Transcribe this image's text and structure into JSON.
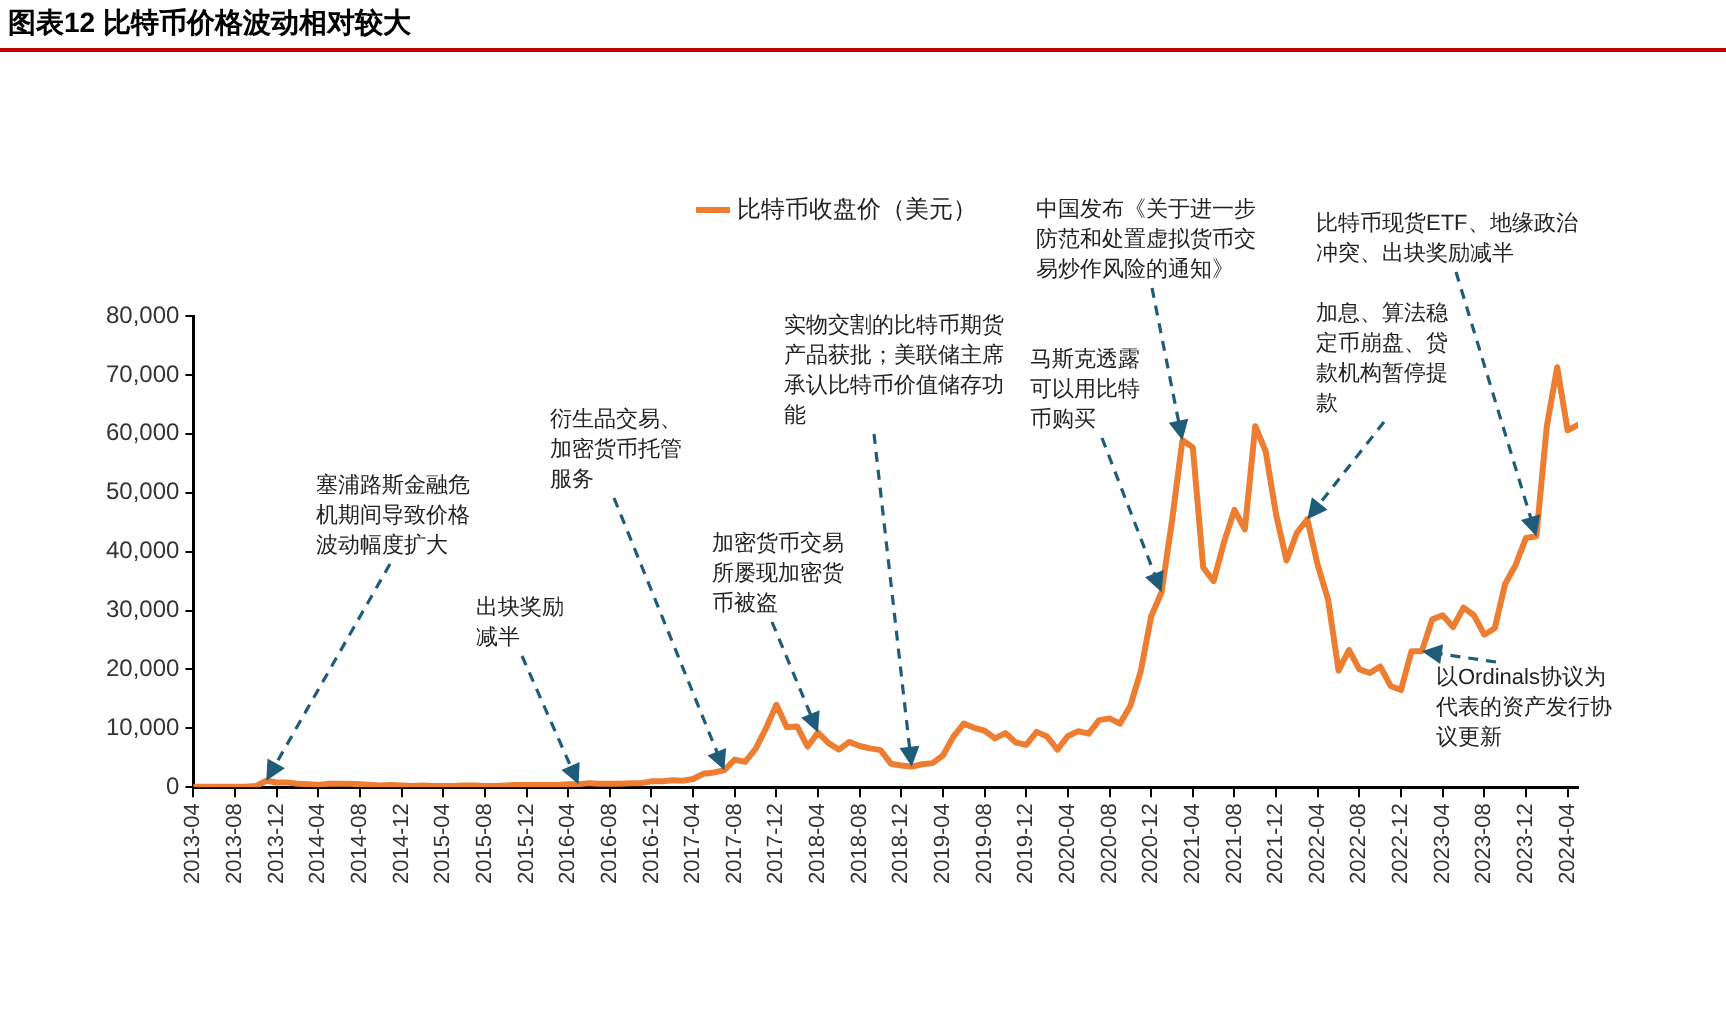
{
  "chart_data": {
    "type": "line",
    "title": "图表12 比特币价格波动相对较大",
    "x": [
      "2013-04",
      "2013-05",
      "2013-06",
      "2013-07",
      "2013-08",
      "2013-09",
      "2013-10",
      "2013-11",
      "2013-12",
      "2014-01",
      "2014-02",
      "2014-03",
      "2014-04",
      "2014-05",
      "2014-06",
      "2014-07",
      "2014-08",
      "2014-09",
      "2014-10",
      "2014-11",
      "2014-12",
      "2015-01",
      "2015-02",
      "2015-03",
      "2015-04",
      "2015-05",
      "2015-06",
      "2015-07",
      "2015-08",
      "2015-09",
      "2015-10",
      "2015-11",
      "2015-12",
      "2016-01",
      "2016-02",
      "2016-03",
      "2016-04",
      "2016-05",
      "2016-06",
      "2016-07",
      "2016-08",
      "2016-09",
      "2016-10",
      "2016-11",
      "2016-12",
      "2017-01",
      "2017-02",
      "2017-03",
      "2017-04",
      "2017-05",
      "2017-06",
      "2017-07",
      "2017-08",
      "2017-09",
      "2017-10",
      "2017-11",
      "2017-12",
      "2018-01",
      "2018-02",
      "2018-03",
      "2018-04",
      "2018-05",
      "2018-06",
      "2018-07",
      "2018-08",
      "2018-09",
      "2018-10",
      "2018-11",
      "2018-12",
      "2019-01",
      "2019-02",
      "2019-03",
      "2019-04",
      "2019-05",
      "2019-06",
      "2019-07",
      "2019-08",
      "2019-09",
      "2019-10",
      "2019-11",
      "2019-12",
      "2020-01",
      "2020-02",
      "2020-03",
      "2020-04",
      "2020-05",
      "2020-06",
      "2020-07",
      "2020-08",
      "2020-09",
      "2020-10",
      "2020-11",
      "2020-12",
      "2021-01",
      "2021-02",
      "2021-03",
      "2021-04",
      "2021-05",
      "2021-06",
      "2021-07",
      "2021-08",
      "2021-09",
      "2021-10",
      "2021-11",
      "2021-12",
      "2022-01",
      "2022-02",
      "2022-03",
      "2022-04",
      "2022-05",
      "2022-06",
      "2022-07",
      "2022-08",
      "2022-09",
      "2022-10",
      "2022-11",
      "2022-12",
      "2023-01",
      "2023-02",
      "2023-03",
      "2023-04",
      "2023-05",
      "2023-06",
      "2023-07",
      "2023-08",
      "2023-09",
      "2023-10",
      "2023-11",
      "2023-12",
      "2024-01",
      "2024-02",
      "2024-03",
      "2024-04",
      "2024-05"
    ],
    "series": [
      {
        "name": "比特币收盘价（美元）",
        "color": "#ed7d31",
        "values": [
          100,
          100,
          100,
          100,
          100,
          100,
          200,
          1100,
          800,
          800,
          600,
          500,
          400,
          600,
          600,
          600,
          500,
          400,
          300,
          400,
          300,
          200,
          300,
          200,
          200,
          200,
          300,
          300,
          200,
          200,
          300,
          400,
          400,
          400,
          400,
          400,
          500,
          500,
          700,
          600,
          600,
          600,
          700,
          700,
          1000,
          1000,
          1200,
          1100,
          1400,
          2300,
          2500,
          2900,
          4700,
          4300,
          6500,
          10000,
          14000,
          10200,
          10300,
          6900,
          9300,
          7500,
          6400,
          7700,
          7000,
          6600,
          6300,
          4000,
          3700,
          3500,
          3900,
          4100,
          5400,
          8600,
          10800,
          10100,
          9600,
          8300,
          9200,
          7600,
          7200,
          9400,
          8600,
          6400,
          8700,
          9500,
          9100,
          11400,
          11700,
          10800,
          13800,
          19700,
          29000,
          33100,
          45200,
          58900,
          57700,
          37300,
          35000,
          41600,
          47100,
          43800,
          61300,
          57000,
          46300,
          38500,
          43200,
          45500,
          37700,
          31800,
          19800,
          23300,
          20000,
          19400,
          20500,
          17200,
          16500,
          23100,
          23100,
          28500,
          29200,
          27200,
          30500,
          29200,
          25900,
          27000,
          34500,
          37700,
          42300,
          42600,
          61200,
          71300,
          60600,
          61500
        ]
      }
    ],
    "xlim": [
      "2013-04",
      "2024-05"
    ],
    "xticks": [
      "2013-04",
      "2013-08",
      "2013-12",
      "2014-04",
      "2014-08",
      "2014-12",
      "2015-04",
      "2015-08",
      "2015-12",
      "2016-04",
      "2016-08",
      "2016-12",
      "2017-04",
      "2017-08",
      "2017-12",
      "2018-04",
      "2018-08",
      "2018-12",
      "2019-04",
      "2019-08",
      "2019-12",
      "2020-04",
      "2020-08",
      "2020-12",
      "2021-04",
      "2021-08",
      "2021-12",
      "2022-04",
      "2022-08",
      "2022-12",
      "2023-04",
      "2023-08",
      "2023-12",
      "2024-04"
    ],
    "ylim": [
      0,
      80000
    ],
    "yticks": [
      {
        "value": 0,
        "label": "0"
      },
      {
        "value": 10000,
        "label": "10,000"
      },
      {
        "value": 20000,
        "label": "20,000"
      },
      {
        "value": 30000,
        "label": "30,000"
      },
      {
        "value": 40000,
        "label": "40,000"
      },
      {
        "value": 50000,
        "label": "50,000"
      },
      {
        "value": 60000,
        "label": "60,000"
      },
      {
        "value": 70000,
        "label": "70,000"
      },
      {
        "value": 80000,
        "label": "80,000"
      }
    ],
    "grid": false,
    "legend": "top",
    "marker": "none",
    "line_style": "solid",
    "annotations": [
      {
        "text": "塞浦路斯金融危机期间导致价格波动幅度扩大",
        "x": "2013-11",
        "y": 1100
      },
      {
        "text": "出块奖励减半",
        "x": "2016-05",
        "y": 500
      },
      {
        "text": "衍生品交易、加密货币托管服务",
        "x": "2017-07",
        "y": 2900
      },
      {
        "text": "加密货币交易所屡现加密货币被盗",
        "x": "2018-04",
        "y": 9300
      },
      {
        "text": "实物交割的比特币期货产品获批；美联储主席承认比特币价值储存功能",
        "x": "2019-01",
        "y": 3500
      },
      {
        "text": "马斯克透露可以用比特币购买",
        "x": "2021-01",
        "y": 33100
      },
      {
        "text": "中国发布《关于进一步防范和处置虚拟货币交易炒作风险的通知》",
        "x": "2021-03",
        "y": 58900
      },
      {
        "text": "加息、算法稳定币崩盘、贷款机构暂停提款",
        "x": "2022-03",
        "y": 45500
      },
      {
        "text": "比特币现货ETF、地缘政治冲突、出块奖励减半",
        "x": "2024-01",
        "y": 42600
      },
      {
        "text": "以Ordinals协议为代表的资产发行协议更新",
        "x": "2023-02",
        "y": 23100
      }
    ]
  }
}
